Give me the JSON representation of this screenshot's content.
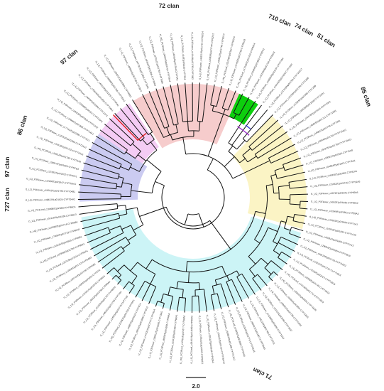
{
  "figure": {
    "clans": [
      {
        "id": "c72",
        "label": "72 clan",
        "color": "#f6c9c9"
      },
      {
        "id": "c710",
        "label": "710 clan",
        "color": "#00cc00"
      },
      {
        "id": "c74",
        "label": "74 clan",
        "color": "#3b3bd6"
      },
      {
        "id": "c51",
        "label": "51 clan",
        "color": "#9b2fc9"
      },
      {
        "id": "c85",
        "label": "85 clan",
        "color": "#fbf3c2"
      },
      {
        "id": "c71",
        "label": "71 clan",
        "color": "#c9f3f5"
      },
      {
        "id": "c727",
        "label": "727 clan",
        "color": "#e02020"
      },
      {
        "id": "c97",
        "label": "97 clan",
        "color": "#f3c9f3"
      },
      {
        "id": "c97b",
        "label": "97 clan",
        "color": "#d7f0f0"
      },
      {
        "id": "c86",
        "label": "86 clan",
        "color": "#c8c8f0"
      }
    ],
    "sector_colors": {
      "c72": "#f6c9c9",
      "c85": "#fbf3c2",
      "c71": "#c9f3f5",
      "c86": "#c8c8f0",
      "c97": "#f3c9f3",
      "c710": "#00cc00"
    },
    "scale_bar": {
      "label": "2.0"
    },
    "leaves": [
      "t1_LQ_P3Flower_c48564/f1p0/1758-CYP78A7",
      "t1_LQ_P3Flower_c47791/f1p0/1800-CYP78A5",
      "t1_LQ_PC3Stem_c9491/f1p0/1856-CYP78A9",
      "t1_LQ_P3Flower_c57041/f1p0/1763-CYP78A6",
      "t1_HQ_PC3Root_c34041/f4p0/1761-CYP78A4",
      "t1_LQ_P3Flower_c4043/f1p0/1764-CYP79A2",
      "t1_LQ_PC3Stem_c14/f1p0/2140-CYP79A1",
      "t1_LQ_P3Flower_c4104/f1p0/1763-CYP79B2",
      "t1_LQ_P3Flower_c46311/f1p0/1721-CYP82C4",
      "t1_HQ_PC3Root_c2069/f1p0/1744-CYP82C2",
      "t1_LQ_P3Flower_c45331/f1p0/1740-CYP82C4",
      "t1_HQ_PC3Leaf_c23128/f1p0/1817-CYP82A3",
      "t1_LQ_P3Flower_c17455/f1p0/1753-CYP82A3",
      "t1_HQ_PC3Leaf_c17533/f1p0/1755-CYP82A4",
      "t1_LQ_PC3Root_c6195/f1p0/1850-CYP82C2",
      "t1_HQ_P3Flower_c10136/f4p0/1794-CYP82A3",
      "t1_LQ_PC3Root_c16684/f2p0/1537-CYP718A",
      "t1_LQ_PC3Root_c18153/f4p0/1628-CYP728H",
      "t1_LQ_PC3Root_c12753/f4p0/1750-CYP716A17",
      "t1_LQ_P3Flower_c13708/f1p0/1750-CYP728B",
      "t1_LQ_PC3Root_c37028/f1p0/1886-CYP728B",
      "t1_LQ_P3Flower_c29538/f2p0/1658-CYP716A1",
      "t1_LQ_P3Flower_c29478/f1p0/1919-CYP719A1",
      "t1_LQ_P3Flower_c45845/f1p0/1711-CYP719B1",
      "t1_LQ_PC3Root_c16681/f1p0/1734-CYP74B1",
      "t1_LQ_P3Flower_c3004/f1p0/1745-CYP710A11",
      "t1_LQ_P3Flower_c52225/f1p0/1763-CYP710A11",
      "t1_LQ_P3Flower_c20061/f1p0/1825-CYP75A8",
      "t1_LQ_P3Flower_c54664/f1p0/1813-CYP76A1",
      "t1_LQ_PC3Root_c18005/f1p0/1881-CYP81A1",
      "t1_LQ_P3Flower_c31952/f1p0/1715-CYP701A6",
      "t1_LQ_P3Flower_c3074/f1p0/1841-CYP89A5",
      "t1_LQ_P3Flower_c4062/f1p0/1836-CYP89A2",
      "t1_LQ_P3Flower_c31949/f1p0/1881-CYP89A3",
      "t1_HQ_P3Flower_c13651/f1p0/1808-CYP71A1",
      "t1_LQ_PC3Root_c15553/f1p0/1832-CYP71A15",
      "t1_LQ_P3Flower_c40281/f1p0/1869-CYP71A12",
      "t1_LQ_P3Flower_c29004/f1p0/1854-CYP71B10",
      "t1_LQ_P3Flower_c49118/f1p0/1719-CYP71B12",
      "t1_LQ_PC3Leaf_c13212/f1p0/1731-CYP71B13",
      "t1_LQ_PC3Stem_c7018/f1p0/2017-CYP71B15",
      "t1_LQ_PC3Stem_c3058/f1p0/1740-CYP71B19",
      "t1_HQ_PC3Leaf_c15118/f1p0/1772-CYP71B23",
      "t1_HQ_PC3Stem_c3001/f1p0/2032-CYP71B26",
      "t1_LQ_P3Flower_c6180/f1p0/1894-CYP71B31",
      "t1_LQ_P3Flower_c58091/f1p0/1798-CYP71B34",
      "t1_LQ_PC3Root_c8161/f1p0/1836-CYP71B37",
      "t1_LQ_P3Flower_c41188/f1p0/1826-CYP71D10",
      "t1_LQ_P3Flower_c45115/f1p0/1768-CYP71D11",
      "t1_LQ_P3Flower_c60341/f1p0/1807-CYP705A5",
      "t1_LQ_PC3Root_c5310/f1p0/1776-CYP706A3",
      "t1_LQ_PC3Leaf_c12901/f1p0/1888-CYP706A6",
      "t1_LQ_P3Flower_c58802/f1p0/1690-CYP712A2",
      "t1_LQ_P3Flower_c58116/f1p0/1734-CYP736A12",
      "t1_LQ_P3Flower_c33511/f1p0/1818-CYP93A3",
      "t1_LQ_P3Flower_c15841/f1p0/1683-CYP93D1",
      "t1_LQ_PC3Leaf_c28161/f1p0/1669-CYP98A3",
      "t1_HQ_PC3Root_c12591/f1p0/1677-CYP98A2",
      "t1_LQ_PC3Root_c31018/f1p0/1634-CYP84A1",
      "t1_LQ_PC3Root_c8209/f1p0/1656-CYP84A4",
      "t1_LQ_P3Flower_c58321/f1p0/1600-CYP73A5",
      "t1_LQ_P3Flower_c47231/f1p0/1707-CYP73A4",
      "t1_LQ_PC3Root_c9541/f1p0/1689-CYP76C2",
      "t1_LQ_P3Flower_c4881/f1p0/1816-CYP76C4",
      "t1_HQ_PC3Root_c15180/f1p0/1750-CYP76C1",
      "t1_LQ_P3Flower_c24591/f1p0/1775-CYP77A4",
      "t1_LQ_P3Flower_c36231/f1p0/1798-CYP77B1",
      "t1_LQ_PC3Root_c12203/f1p0/1797-CYP86A1",
      "t1_LQ_P3Flower_c6511/f1p0/1758-CYP86A2",
      "t1_LQ_P3Flower_c31551/f1p0/1979-CYP86A4",
      "t1_LQ_PC3Root_c4094/f1p0/1691-CYP97A",
      "t1_LQ_PC3Root_c55741/f1p0/1726-CYP94B1",
      "t1_LQ_PC3Root_c12035/f1p0/1713-CYP94B3",
      "t1_LQ_PC3Leaf_c2671/f6p1/1616-CYP94A1",
      "t1_HQ_PC3Leaf_c22956/f2p0/1790-CYP96A1",
      "t1_LQ_P3Flower_c15125/f1p0/1845-CYP96B1",
      "t1_LQ_P3Flower_c7466/f1p0/1723-CYP86A8",
      "t1_HQ_P3Flower_c21888/f1p0/1714-CYP86B1",
      "t1_LQ_P3Flower_c51118/f1p0/1838-CYP86C3",
      "t1_LQ_PC3Leaf_c10898/f2p0/1863-CYP86C4",
      "t1_LQ_P3Flower_c49822/f1p0/1824-CYP704A2",
      "t1_LQ_P3Flower_c56012/f1p0/1796-CYP704B1",
      "t1_LQ_P3Flower_c12188/f1p0/1847-CYP704A1",
      "t1_LQ_PC3Stem_c37381/f1p0/1822-CYP97C1",
      "t1_LQ_PC3Root_c28914/f1p0/1855-CYP97B3",
      "t1_HQ_PC3Root_c22812/f1p0/1782-CYP72A8",
      "t1_LQ_P3Flower_c45518/f1p0/1762-CYP72A15",
      "t1_LQ_P3Flower_c12231/f1p0/1892-CYP72A13",
      "t1_LQ_P3Flower_c17762/f1p0/1881-CYP72C1",
      "t1_LQ_PC3Root_c10066/f1p0/1855-CYP714A1",
      "t1_LQ_P3Flower_c28118/f1p0/1834-CYP714A2",
      "t1_LQ_PC3Stem_c11808/f1p0/1817-CYP715A1",
      "t1_LQ_P3Flower_c4044/f1p0/1809-CYP721A1",
      "t1_LQ_P3Flower_c35618/f1p0/1853-CYP734A1",
      "t1_LQ_P3Flower_c40311/f1p0/1829-CYP735A1",
      "t1_LQ_PC3Root_c18896/f1p0/1788-CYP735A2",
      "t1_LQ_P3Flower_c39921/f1p0/1869-CYP709B2"
    ]
  }
}
